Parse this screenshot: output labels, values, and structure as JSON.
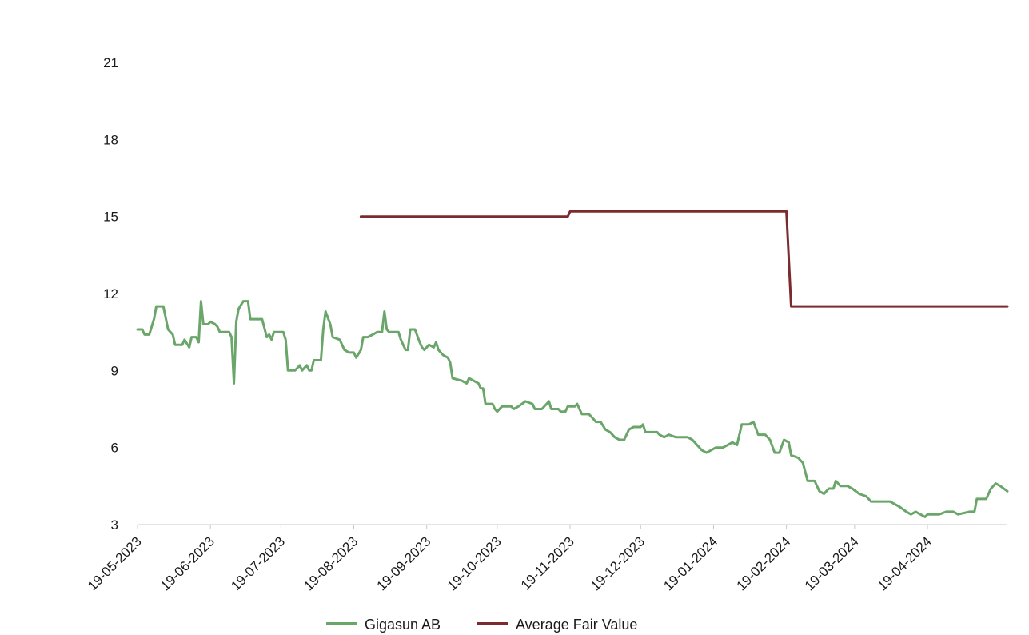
{
  "chart_data": {
    "type": "line",
    "title": "",
    "xlabel": "",
    "ylabel": "",
    "ylim": [
      3,
      21
    ],
    "y_ticks": [
      3,
      6,
      9,
      12,
      15,
      18,
      21
    ],
    "x_range": [
      "2023-05-19",
      "2024-05-23"
    ],
    "x_ticks": [
      {
        "date": "2023-05-19",
        "label": "19-05-2023"
      },
      {
        "date": "2023-06-19",
        "label": "19-06-2023"
      },
      {
        "date": "2023-07-19",
        "label": "19-07-2023"
      },
      {
        "date": "2023-08-19",
        "label": "19-08-2023"
      },
      {
        "date": "2023-09-19",
        "label": "19-09-2023"
      },
      {
        "date": "2023-10-19",
        "label": "19-10-2023"
      },
      {
        "date": "2023-11-19",
        "label": "19-11-2023"
      },
      {
        "date": "2023-12-19",
        "label": "19-12-2023"
      },
      {
        "date": "2024-01-19",
        "label": "19-01-2024"
      },
      {
        "date": "2024-02-19",
        "label": "19-02-2024"
      },
      {
        "date": "2024-03-19",
        "label": "19-03-2024"
      },
      {
        "date": "2024-04-19",
        "label": "19-04-2024"
      }
    ],
    "grid": false,
    "legend_position": "bottom-center",
    "series": [
      {
        "name": "Gigasun AB",
        "color": "#6aa56a",
        "points": [
          [
            "2023-05-19",
            10.6
          ],
          [
            "2023-05-21",
            10.6
          ],
          [
            "2023-05-22",
            10.4
          ],
          [
            "2023-05-24",
            10.4
          ],
          [
            "2023-05-26",
            11.0
          ],
          [
            "2023-05-27",
            11.5
          ],
          [
            "2023-05-30",
            11.5
          ],
          [
            "2023-06-01",
            10.6
          ],
          [
            "2023-06-03",
            10.4
          ],
          [
            "2023-06-04",
            10.0
          ],
          [
            "2023-06-07",
            10.0
          ],
          [
            "2023-06-08",
            10.2
          ],
          [
            "2023-06-10",
            9.9
          ],
          [
            "2023-06-11",
            10.3
          ],
          [
            "2023-06-13",
            10.3
          ],
          [
            "2023-06-14",
            10.1
          ],
          [
            "2023-06-15",
            11.7
          ],
          [
            "2023-06-16",
            10.8
          ],
          [
            "2023-06-18",
            10.8
          ],
          [
            "2023-06-19",
            10.9
          ],
          [
            "2023-06-21",
            10.8
          ],
          [
            "2023-06-22",
            10.7
          ],
          [
            "2023-06-23",
            10.5
          ],
          [
            "2023-06-27",
            10.5
          ],
          [
            "2023-06-28",
            10.3
          ],
          [
            "2023-06-29",
            8.5
          ],
          [
            "2023-06-30",
            10.9
          ],
          [
            "2023-07-01",
            11.4
          ],
          [
            "2023-07-03",
            11.7
          ],
          [
            "2023-07-05",
            11.7
          ],
          [
            "2023-07-06",
            11.0
          ],
          [
            "2023-07-11",
            11.0
          ],
          [
            "2023-07-13",
            10.3
          ],
          [
            "2023-07-14",
            10.4
          ],
          [
            "2023-07-15",
            10.2
          ],
          [
            "2023-07-16",
            10.5
          ],
          [
            "2023-07-20",
            10.5
          ],
          [
            "2023-07-21",
            10.2
          ],
          [
            "2023-07-22",
            9.0
          ],
          [
            "2023-07-25",
            9.0
          ],
          [
            "2023-07-26",
            9.1
          ],
          [
            "2023-07-27",
            9.2
          ],
          [
            "2023-07-28",
            9.0
          ],
          [
            "2023-07-30",
            9.2
          ],
          [
            "2023-07-31",
            9.0
          ],
          [
            "2023-08-01",
            9.0
          ],
          [
            "2023-08-02",
            9.4
          ],
          [
            "2023-08-05",
            9.4
          ],
          [
            "2023-08-06",
            10.6
          ],
          [
            "2023-08-07",
            11.3
          ],
          [
            "2023-08-09",
            10.8
          ],
          [
            "2023-08-10",
            10.3
          ],
          [
            "2023-08-13",
            10.2
          ],
          [
            "2023-08-15",
            9.8
          ],
          [
            "2023-08-17",
            9.7
          ],
          [
            "2023-08-19",
            9.7
          ],
          [
            "2023-08-20",
            9.5
          ],
          [
            "2023-08-22",
            9.8
          ],
          [
            "2023-08-23",
            10.3
          ],
          [
            "2023-08-25",
            10.3
          ],
          [
            "2023-08-27",
            10.4
          ],
          [
            "2023-08-29",
            10.5
          ],
          [
            "2023-08-31",
            10.5
          ],
          [
            "2023-09-01",
            11.3
          ],
          [
            "2023-09-02",
            10.6
          ],
          [
            "2023-09-03",
            10.5
          ],
          [
            "2023-09-07",
            10.5
          ],
          [
            "2023-09-08",
            10.2
          ],
          [
            "2023-09-10",
            9.8
          ],
          [
            "2023-09-11",
            9.8
          ],
          [
            "2023-09-12",
            10.6
          ],
          [
            "2023-09-14",
            10.6
          ],
          [
            "2023-09-16",
            10.1
          ],
          [
            "2023-09-17",
            9.9
          ],
          [
            "2023-09-18",
            9.8
          ],
          [
            "2023-09-20",
            10.0
          ],
          [
            "2023-09-22",
            9.9
          ],
          [
            "2023-09-23",
            10.1
          ],
          [
            "2023-09-24",
            9.8
          ],
          [
            "2023-09-26",
            9.6
          ],
          [
            "2023-09-28",
            9.5
          ],
          [
            "2023-09-29",
            9.3
          ],
          [
            "2023-09-30",
            8.7
          ],
          [
            "2023-10-04",
            8.6
          ],
          [
            "2023-10-06",
            8.5
          ],
          [
            "2023-10-07",
            8.7
          ],
          [
            "2023-10-09",
            8.6
          ],
          [
            "2023-10-11",
            8.5
          ],
          [
            "2023-10-12",
            8.3
          ],
          [
            "2023-10-13",
            8.3
          ],
          [
            "2023-10-14",
            7.7
          ],
          [
            "2023-10-17",
            7.7
          ],
          [
            "2023-10-18",
            7.5
          ],
          [
            "2023-10-19",
            7.4
          ],
          [
            "2023-10-21",
            7.6
          ],
          [
            "2023-10-25",
            7.6
          ],
          [
            "2023-10-26",
            7.5
          ],
          [
            "2023-10-28",
            7.6
          ],
          [
            "2023-10-31",
            7.8
          ],
          [
            "2023-11-03",
            7.7
          ],
          [
            "2023-11-04",
            7.5
          ],
          [
            "2023-11-07",
            7.5
          ],
          [
            "2023-11-09",
            7.7
          ],
          [
            "2023-11-10",
            7.8
          ],
          [
            "2023-11-11",
            7.5
          ],
          [
            "2023-11-14",
            7.5
          ],
          [
            "2023-11-15",
            7.4
          ],
          [
            "2023-11-17",
            7.4
          ],
          [
            "2023-11-18",
            7.6
          ],
          [
            "2023-11-21",
            7.6
          ],
          [
            "2023-11-22",
            7.7
          ],
          [
            "2023-11-23",
            7.5
          ],
          [
            "2023-11-24",
            7.3
          ],
          [
            "2023-11-27",
            7.3
          ],
          [
            "2023-11-29",
            7.1
          ],
          [
            "2023-11-30",
            7.0
          ],
          [
            "2023-12-02",
            7.0
          ],
          [
            "2023-12-04",
            6.7
          ],
          [
            "2023-12-06",
            6.6
          ],
          [
            "2023-12-08",
            6.4
          ],
          [
            "2023-12-10",
            6.3
          ],
          [
            "2023-12-12",
            6.3
          ],
          [
            "2023-12-14",
            6.7
          ],
          [
            "2023-12-16",
            6.8
          ],
          [
            "2023-12-19",
            6.8
          ],
          [
            "2023-12-20",
            6.9
          ],
          [
            "2023-12-21",
            6.6
          ],
          [
            "2023-12-26",
            6.6
          ],
          [
            "2023-12-27",
            6.5
          ],
          [
            "2023-12-29",
            6.4
          ],
          [
            "2023-12-31",
            6.5
          ],
          [
            "2024-01-03",
            6.4
          ],
          [
            "2024-01-05",
            6.4
          ],
          [
            "2024-01-08",
            6.4
          ],
          [
            "2024-01-10",
            6.3
          ],
          [
            "2024-01-12",
            6.1
          ],
          [
            "2024-01-14",
            5.9
          ],
          [
            "2024-01-16",
            5.8
          ],
          [
            "2024-01-18",
            5.9
          ],
          [
            "2024-01-20",
            6.0
          ],
          [
            "2024-01-23",
            6.0
          ],
          [
            "2024-01-25",
            6.1
          ],
          [
            "2024-01-27",
            6.2
          ],
          [
            "2024-01-29",
            6.1
          ],
          [
            "2024-01-31",
            6.9
          ],
          [
            "2024-02-03",
            6.9
          ],
          [
            "2024-02-05",
            7.0
          ],
          [
            "2024-02-07",
            6.5
          ],
          [
            "2024-02-10",
            6.5
          ],
          [
            "2024-02-12",
            6.3
          ],
          [
            "2024-02-14",
            5.8
          ],
          [
            "2024-02-16",
            5.8
          ],
          [
            "2024-02-18",
            6.3
          ],
          [
            "2024-02-20",
            6.2
          ],
          [
            "2024-02-21",
            5.7
          ],
          [
            "2024-02-24",
            5.6
          ],
          [
            "2024-02-26",
            5.4
          ],
          [
            "2024-02-28",
            4.7
          ],
          [
            "2024-03-02",
            4.7
          ],
          [
            "2024-03-04",
            4.3
          ],
          [
            "2024-03-06",
            4.2
          ],
          [
            "2024-03-08",
            4.4
          ],
          [
            "2024-03-10",
            4.4
          ],
          [
            "2024-03-11",
            4.7
          ],
          [
            "2024-03-13",
            4.5
          ],
          [
            "2024-03-16",
            4.5
          ],
          [
            "2024-03-18",
            4.4
          ],
          [
            "2024-03-21",
            4.2
          ],
          [
            "2024-03-24",
            4.1
          ],
          [
            "2024-03-26",
            3.9
          ],
          [
            "2024-03-29",
            3.9
          ],
          [
            "2024-04-03",
            3.9
          ],
          [
            "2024-04-05",
            3.8
          ],
          [
            "2024-04-07",
            3.7
          ],
          [
            "2024-04-10",
            3.5
          ],
          [
            "2024-04-12",
            3.4
          ],
          [
            "2024-04-14",
            3.5
          ],
          [
            "2024-04-16",
            3.4
          ],
          [
            "2024-04-18",
            3.3
          ],
          [
            "2024-04-19",
            3.4
          ],
          [
            "2024-04-21",
            3.4
          ],
          [
            "2024-04-24",
            3.4
          ],
          [
            "2024-04-27",
            3.5
          ],
          [
            "2024-04-30",
            3.5
          ],
          [
            "2024-05-02",
            3.4
          ],
          [
            "2024-05-07",
            3.5
          ],
          [
            "2024-05-09",
            3.5
          ],
          [
            "2024-05-10",
            4.0
          ],
          [
            "2024-05-14",
            4.0
          ],
          [
            "2024-05-16",
            4.4
          ],
          [
            "2024-05-18",
            4.6
          ],
          [
            "2024-05-20",
            4.5
          ],
          [
            "2024-05-23",
            4.3
          ]
        ]
      },
      {
        "name": "Average Fair Value",
        "color": "#7b2a2e",
        "points": [
          [
            "2023-08-22",
            15.0
          ],
          [
            "2023-11-18",
            15.0
          ],
          [
            "2023-11-19",
            15.2
          ],
          [
            "2024-02-19",
            15.2
          ],
          [
            "2024-02-21",
            11.5
          ],
          [
            "2024-05-23",
            11.5
          ]
        ]
      }
    ]
  }
}
